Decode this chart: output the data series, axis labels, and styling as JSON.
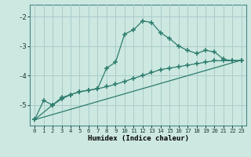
{
  "title": "",
  "xlabel": "Humidex (Indice chaleur)",
  "ylabel": "",
  "bg_color": "#cce8e0",
  "grid_color": "#aacccc",
  "line_color": "#2e7d6e",
  "ylim": [
    -5.7,
    -1.6
  ],
  "xlim": [
    -0.5,
    23.5
  ],
  "yticks": [
    -5,
    -4,
    -3,
    -2
  ],
  "xticks": [
    0,
    1,
    2,
    3,
    4,
    5,
    6,
    7,
    8,
    9,
    10,
    11,
    12,
    13,
    14,
    15,
    16,
    17,
    18,
    19,
    20,
    21,
    22,
    23
  ],
  "line1_x": [
    0,
    1,
    2,
    3,
    4,
    5,
    6,
    7,
    8,
    9,
    10,
    11,
    12,
    13,
    14,
    15,
    16,
    17,
    18,
    19,
    20,
    21,
    22,
    23
  ],
  "line1_y": [
    -5.5,
    -4.85,
    -5.0,
    -4.75,
    -4.65,
    -4.55,
    -4.5,
    -4.45,
    -3.75,
    -3.55,
    -2.6,
    -2.45,
    -2.15,
    -2.2,
    -2.55,
    -2.75,
    -3.0,
    -3.15,
    -3.25,
    -3.15,
    -3.2,
    -3.45,
    -3.5,
    -3.5
  ],
  "line2_x": [
    0,
    2,
    3,
    4,
    5,
    6,
    7,
    8,
    9,
    10,
    11,
    12,
    13,
    14,
    15,
    16,
    17,
    18,
    19,
    20,
    21,
    22,
    23
  ],
  "line2_y": [
    -5.5,
    -5.0,
    -4.8,
    -4.65,
    -4.55,
    -4.5,
    -4.45,
    -4.38,
    -4.3,
    -4.2,
    -4.1,
    -4.0,
    -3.9,
    -3.8,
    -3.75,
    -3.7,
    -3.65,
    -3.6,
    -3.55,
    -3.5,
    -3.5,
    -3.5,
    -3.48
  ],
  "line3_x": [
    0,
    23
  ],
  "line3_y": [
    -5.5,
    -3.48
  ]
}
